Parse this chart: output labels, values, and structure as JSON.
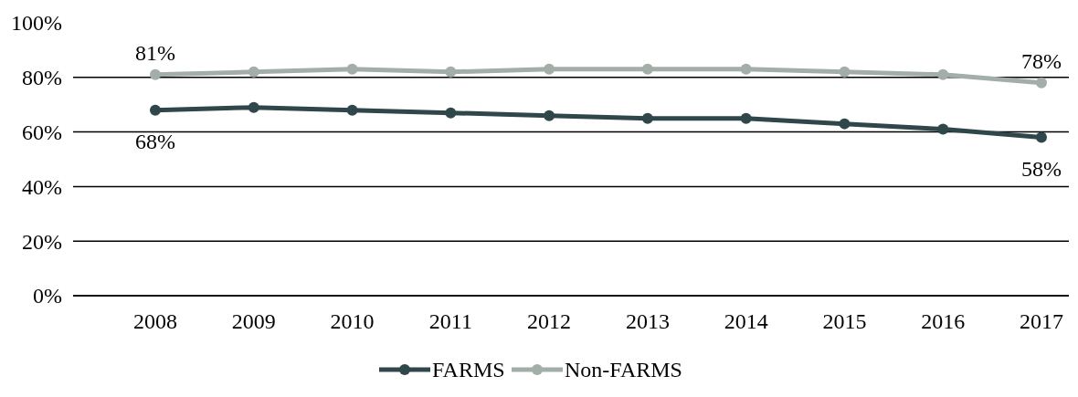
{
  "chart_data": {
    "type": "line",
    "categories": [
      "2008",
      "2009",
      "2010",
      "2011",
      "2012",
      "2013",
      "2014",
      "2015",
      "2016",
      "2017"
    ],
    "series": [
      {
        "name": "FARMS",
        "color": "#2f474b",
        "values": [
          68,
          69,
          68,
          67,
          66,
          65,
          65,
          63,
          61,
          58
        ],
        "value_labels": [
          "68%",
          null,
          null,
          null,
          null,
          null,
          null,
          null,
          null,
          "58%"
        ]
      },
      {
        "name": "Non-FARMS",
        "color": "#a4aea9",
        "values": [
          81,
          82,
          83,
          82,
          83,
          83,
          83,
          82,
          81,
          78
        ],
        "value_labels": [
          "81%",
          null,
          null,
          null,
          null,
          null,
          null,
          null,
          null,
          "78%"
        ]
      }
    ],
    "ylim": [
      0,
      100
    ],
    "yticks": [
      {
        "value": 0,
        "label": "0%"
      },
      {
        "value": 20,
        "label": "20%"
      },
      {
        "value": 40,
        "label": "40%"
      },
      {
        "value": 60,
        "label": "60%"
      },
      {
        "value": 80,
        "label": "80%"
      },
      {
        "value": 100,
        "label": "100%"
      }
    ],
    "grid": "y",
    "legend": "bottom",
    "marker": "circle",
    "line_style": "solid"
  }
}
